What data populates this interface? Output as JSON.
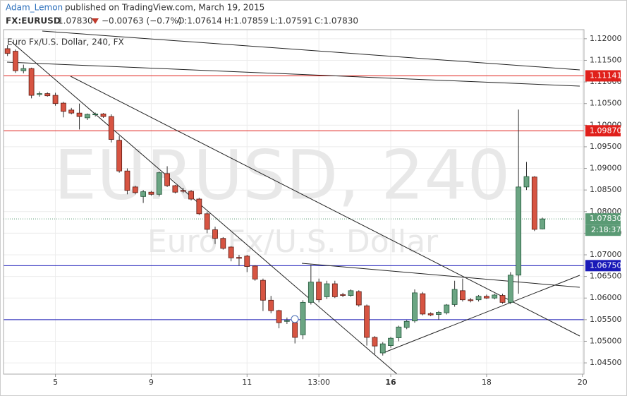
{
  "header": {
    "author": "Adam_Lemon",
    "published": "published on TradingView.com, March 19, 2015",
    "symbol": "FX:EURUSD",
    "last": "1.07830",
    "change": "−0.00763 (−0.7%)",
    "open": "O:1.07614",
    "high": "H:1.07859",
    "low": "L:1.07591",
    "close": "C:1.07830"
  },
  "chart_data": {
    "type": "candlestick",
    "legend": "Euro Fx/U.S. Dollar, 240, FX",
    "watermark": "EURUSD, 240",
    "watermark_sub": "Euro Fx/U.S. Dollar",
    "up_color": "#6ba583",
    "down_color": "#d75442",
    "open": [
      1.1177,
      1.1171,
      1.1126,
      1.1131,
      1.1071,
      1.1073,
      1.1069,
      1.1051,
      1.1035,
      1.1028,
      1.1017,
      1.1024,
      1.1026,
      1.102,
      1.0965,
      1.0894,
      1.0857,
      1.0835,
      1.0845,
      1.084,
      1.0888,
      1.086,
      1.0849,
      1.0847,
      1.0829,
      1.0795,
      1.0758,
      1.0738,
      1.0718,
      1.0694,
      1.0697,
      1.0674,
      1.0641,
      1.0595,
      1.0571,
      1.0546,
      1.0543,
      1.0515,
      1.059,
      1.0637,
      1.0603,
      1.0633,
      1.0608,
      1.0606,
      1.0615,
      1.0582,
      1.0509,
      1.0473,
      1.049,
      1.0508,
      1.0532,
      1.0547,
      1.061,
      1.0564,
      1.0562,
      1.0566,
      1.0585,
      1.0617,
      1.0596,
      1.0596,
      1.0604,
      1.06,
      1.0606,
      1.059,
      1.0653,
      1.0857,
      1.088,
      1.076
    ],
    "high": [
      1.1185,
      1.1175,
      1.114,
      1.1133,
      1.1078,
      1.1076,
      1.1075,
      1.1054,
      1.104,
      1.105,
      1.1027,
      1.1029,
      1.1028,
      1.1025,
      1.0975,
      1.09,
      1.086,
      1.085,
      1.0848,
      1.0893,
      1.0905,
      1.0862,
      1.0855,
      1.085,
      1.0832,
      1.08,
      1.0765,
      1.0741,
      1.072,
      1.07,
      1.07,
      1.0676,
      1.0645,
      1.0605,
      1.0573,
      1.0555,
      1.0546,
      1.0595,
      1.0677,
      1.0645,
      1.064,
      1.064,
      1.0612,
      1.062,
      1.0618,
      1.0585,
      1.0512,
      1.0498,
      1.051,
      1.0536,
      1.0549,
      1.062,
      1.0614,
      1.0567,
      1.057,
      1.0586,
      1.064,
      1.0645,
      1.06,
      1.0607,
      1.0608,
      1.061,
      1.061,
      1.066,
      1.1036,
      1.0915,
      1.0882,
      1.0786
    ],
    "low": [
      1.116,
      1.1121,
      1.112,
      1.1062,
      1.1066,
      1.1066,
      1.1045,
      1.1018,
      1.1025,
      1.099,
      1.1012,
      1.102,
      1.1017,
      1.096,
      1.089,
      1.084,
      1.084,
      1.082,
      1.0837,
      1.0835,
      1.0857,
      1.0842,
      1.0843,
      1.0826,
      1.0792,
      1.075,
      1.0725,
      1.0712,
      1.0685,
      1.0675,
      1.066,
      1.064,
      1.057,
      1.0565,
      1.053,
      1.054,
      1.0495,
      1.0505,
      1.0585,
      1.059,
      1.0598,
      1.06,
      1.0602,
      1.0603,
      1.058,
      1.049,
      1.047,
      1.0467,
      1.0485,
      1.05,
      1.0528,
      1.0543,
      1.056,
      1.0558,
      1.055,
      1.0562,
      1.058,
      1.0592,
      1.059,
      1.0592,
      1.0598,
      1.0597,
      1.0587,
      1.0586,
      1.061,
      1.085,
      1.0755,
      1.0759
    ],
    "close": [
      1.1166,
      1.1126,
      1.1131,
      1.1069,
      1.1073,
      1.1068,
      1.105,
      1.1032,
      1.1028,
      1.102,
      1.1025,
      1.1026,
      1.102,
      1.0967,
      1.0894,
      1.0849,
      1.0844,
      1.0846,
      1.084,
      1.089,
      1.086,
      1.0845,
      1.0847,
      1.0829,
      1.0795,
      1.0759,
      1.0738,
      1.0715,
      1.0693,
      1.0692,
      1.0673,
      1.0644,
      1.0595,
      1.0571,
      1.0543,
      1.0548,
      1.0509,
      1.059,
      1.0637,
      1.0596,
      1.0633,
      1.0603,
      1.0606,
      1.0617,
      1.0584,
      1.0509,
      1.0489,
      1.0494,
      1.0507,
      1.0533,
      1.0546,
      1.0612,
      1.0563,
      1.0561,
      1.0567,
      1.0584,
      1.062,
      1.0596,
      1.0594,
      1.0604,
      1.06,
      1.0607,
      1.059,
      1.0653,
      1.0857,
      1.0881,
      1.0759,
      1.0783
    ],
    "xlim": [
      -0.5,
      72.2
    ],
    "xticks": [
      {
        "value": 6,
        "label": "5"
      },
      {
        "value": 18,
        "label": "9"
      },
      {
        "value": 30,
        "label": "11"
      },
      {
        "value": 39,
        "label": "13:00"
      },
      {
        "value": 48,
        "label": "16"
      },
      {
        "value": 60,
        "label": "18"
      },
      {
        "value": 72,
        "label": "20"
      }
    ],
    "ylim": [
      1.0424,
      1.1221
    ],
    "yticks": [
      {
        "value": 1.045,
        "label": "1.04500"
      },
      {
        "value": 1.05,
        "label": "1.05000"
      },
      {
        "value": 1.055,
        "label": "1.05500"
      },
      {
        "value": 1.06,
        "label": "1.06000"
      },
      {
        "value": 1.065,
        "label": "1.06500"
      },
      {
        "value": 1.07,
        "label": "1.07000"
      },
      {
        "value": 1.075,
        "label": "1.07500"
      },
      {
        "value": 1.08,
        "label": "1.08000"
      },
      {
        "value": 1.085,
        "label": "1.08500"
      },
      {
        "value": 1.09,
        "label": "1.09000"
      },
      {
        "value": 1.095,
        "label": "1.09500"
      },
      {
        "value": 1.1,
        "label": "1.10000"
      },
      {
        "value": 1.105,
        "label": "1.10500"
      },
      {
        "value": 1.11,
        "label": "1.11000"
      },
      {
        "value": 1.115,
        "label": "1.11500"
      },
      {
        "value": 1.12,
        "label": "1.12000"
      }
    ],
    "grid": true,
    "horizontal_lines": [
      {
        "value": 1.11141,
        "label": "1.11141",
        "color": "#e0201b"
      },
      {
        "value": 1.0987,
        "label": "1.09870",
        "color": "#e0201b"
      },
      {
        "value": 1.0675,
        "label": "1.06750",
        "color": "#1a1ab8"
      },
      {
        "value": 1.055,
        "color": "#1a1ab8"
      }
    ],
    "last_price": {
      "value": 1.0783,
      "label": "1.07830",
      "color": "#5a9a74"
    },
    "countdown": "2:18:37"
  }
}
